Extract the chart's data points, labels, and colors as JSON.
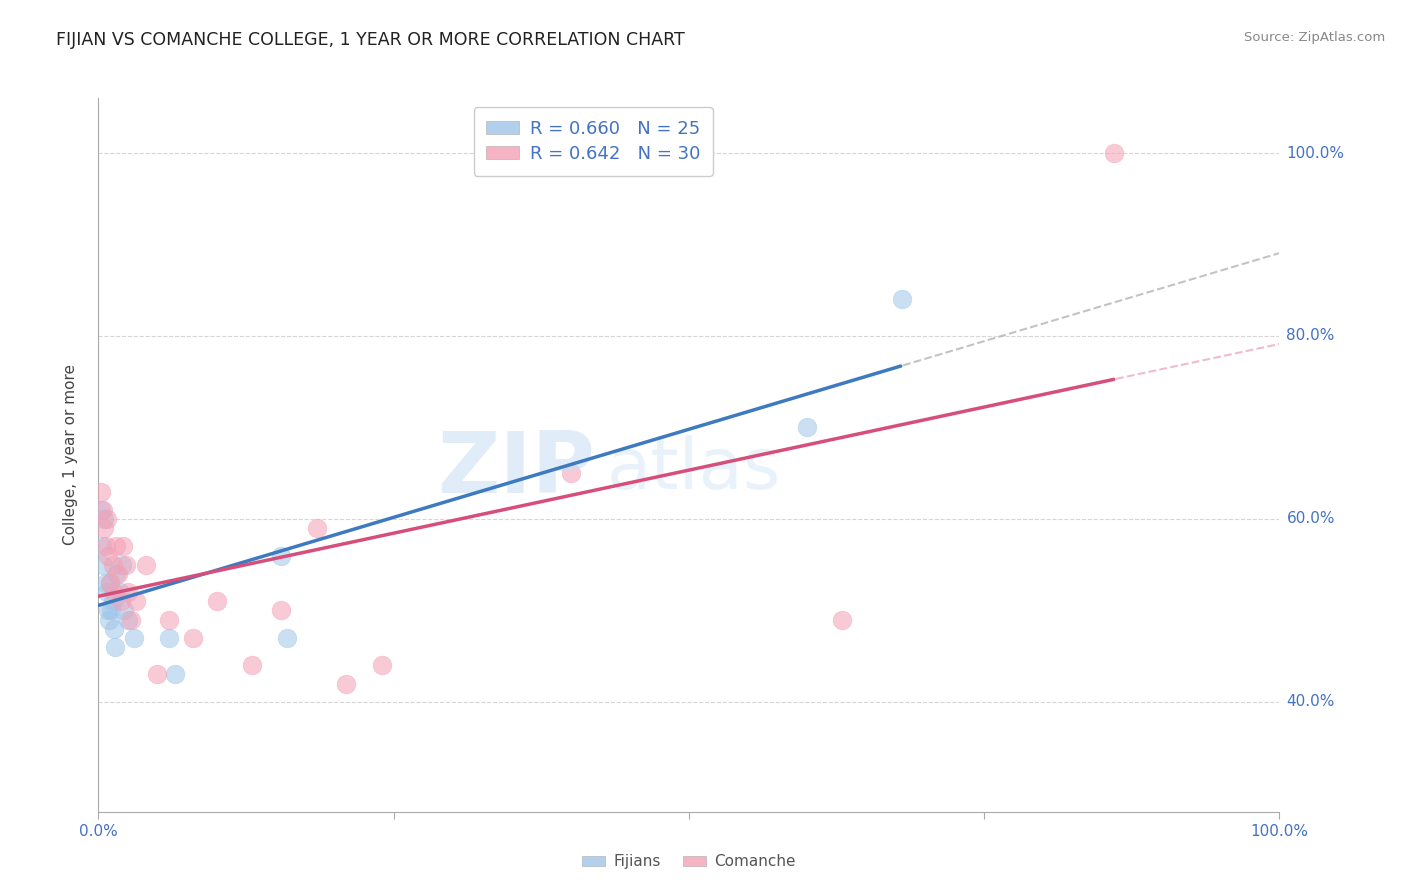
{
  "title": "FIJIAN VS COMANCHE COLLEGE, 1 YEAR OR MORE CORRELATION CHART",
  "source_text": "Source: ZipAtlas.com",
  "ylabel": "College, 1 year or more",
  "xlim": [
    0.0,
    1.0
  ],
  "ylim": [
    0.28,
    1.06
  ],
  "y_ticks": [
    0.4,
    0.6,
    0.8,
    1.0
  ],
  "y_tick_labels": [
    "40.0%",
    "60.0%",
    "80.0%",
    "100.0%"
  ],
  "x_ticks": [
    0.0,
    0.25,
    0.5,
    0.75,
    1.0
  ],
  "x_tick_labels": [
    "0.0%",
    "",
    "",
    "",
    "100.0%"
  ],
  "fijian_color": "#9fc5e8",
  "comanche_color": "#f4a0b5",
  "fijian_line_color": "#3d7abf",
  "comanche_line_color": "#d64f7a",
  "fijian_dash_color": "#aaaaaa",
  "comanche_dash_color": "#e8a0b8",
  "R_fijian": 0.66,
  "N_fijian": 25,
  "R_comanche": 0.642,
  "N_comanche": 30,
  "watermark_zip": "ZIP",
  "watermark_atlas": "atlas",
  "background_color": "#ffffff",
  "fijian_x": [
    0.002,
    0.003,
    0.004,
    0.005,
    0.006,
    0.007,
    0.008,
    0.009,
    0.01,
    0.011,
    0.012,
    0.013,
    0.014,
    0.015,
    0.018,
    0.02,
    0.022,
    0.025,
    0.03,
    0.06,
    0.065,
    0.155,
    0.16,
    0.6,
    0.68
  ],
  "fijian_y": [
    0.61,
    0.57,
    0.55,
    0.6,
    0.53,
    0.52,
    0.5,
    0.49,
    0.53,
    0.5,
    0.51,
    0.48,
    0.46,
    0.54,
    0.52,
    0.55,
    0.5,
    0.49,
    0.47,
    0.47,
    0.43,
    0.56,
    0.47,
    0.7,
    0.84
  ],
  "comanche_x": [
    0.002,
    0.004,
    0.005,
    0.006,
    0.007,
    0.008,
    0.01,
    0.012,
    0.013,
    0.015,
    0.017,
    0.019,
    0.021,
    0.023,
    0.025,
    0.028,
    0.032,
    0.04,
    0.05,
    0.06,
    0.08,
    0.1,
    0.13,
    0.155,
    0.185,
    0.21,
    0.24,
    0.4,
    0.63,
    0.86
  ],
  "comanche_y": [
    0.63,
    0.61,
    0.59,
    0.57,
    0.6,
    0.56,
    0.53,
    0.55,
    0.52,
    0.57,
    0.54,
    0.51,
    0.57,
    0.55,
    0.52,
    0.49,
    0.51,
    0.55,
    0.43,
    0.49,
    0.47,
    0.51,
    0.44,
    0.5,
    0.59,
    0.42,
    0.44,
    0.65,
    0.49,
    1.0
  ],
  "grid_color": "#cccccc",
  "tick_color": "#aaaaaa",
  "label_color": "#4472c4"
}
